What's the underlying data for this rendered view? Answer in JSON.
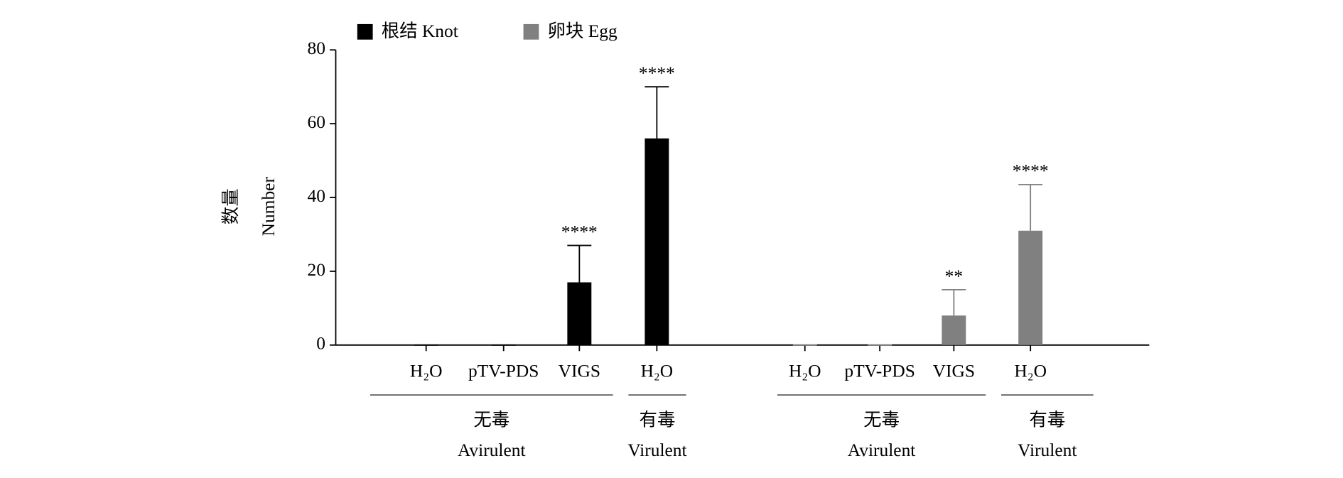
{
  "chart_data": {
    "type": "bar",
    "ylabel": [
      "数量",
      "Number"
    ],
    "groups": [
      {
        "label": "无毒",
        "label_en": "Avirulent",
        "categories": [
          "H₂O",
          "pTV-PDS",
          "VIGS"
        ]
      },
      {
        "label": "有毒",
        "label_en": "Virulent",
        "categories": [
          "H₂O"
        ]
      },
      {
        "label": "无毒",
        "label_en": "Avirulent",
        "categories": [
          "H₂O",
          "pTV-PDS",
          "VIGS"
        ]
      },
      {
        "label": "有毒",
        "label_en": "Virulent",
        "categories": [
          "H₂O"
        ]
      }
    ],
    "series": [
      {
        "name": "根结 Knot",
        "color": "#000000",
        "values": [
          0,
          0,
          17,
          56,
          null,
          null,
          null,
          null
        ],
        "errors": [
          0,
          0,
          10,
          14,
          null,
          null,
          null,
          null
        ],
        "annotations": [
          null,
          null,
          "****",
          "****",
          null,
          null,
          null,
          null
        ]
      },
      {
        "name": "卵块 Egg",
        "color": "#808080",
        "values": [
          null,
          null,
          null,
          null,
          0,
          0,
          8,
          31
        ],
        "errors": [
          null,
          null,
          null,
          null,
          0,
          0,
          7,
          12.5
        ],
        "annotations": [
          null,
          null,
          null,
          null,
          null,
          null,
          "**",
          "****"
        ]
      }
    ],
    "ylim": [
      0,
      80
    ],
    "yticks": [
      0,
      20,
      40,
      60,
      80
    ]
  }
}
